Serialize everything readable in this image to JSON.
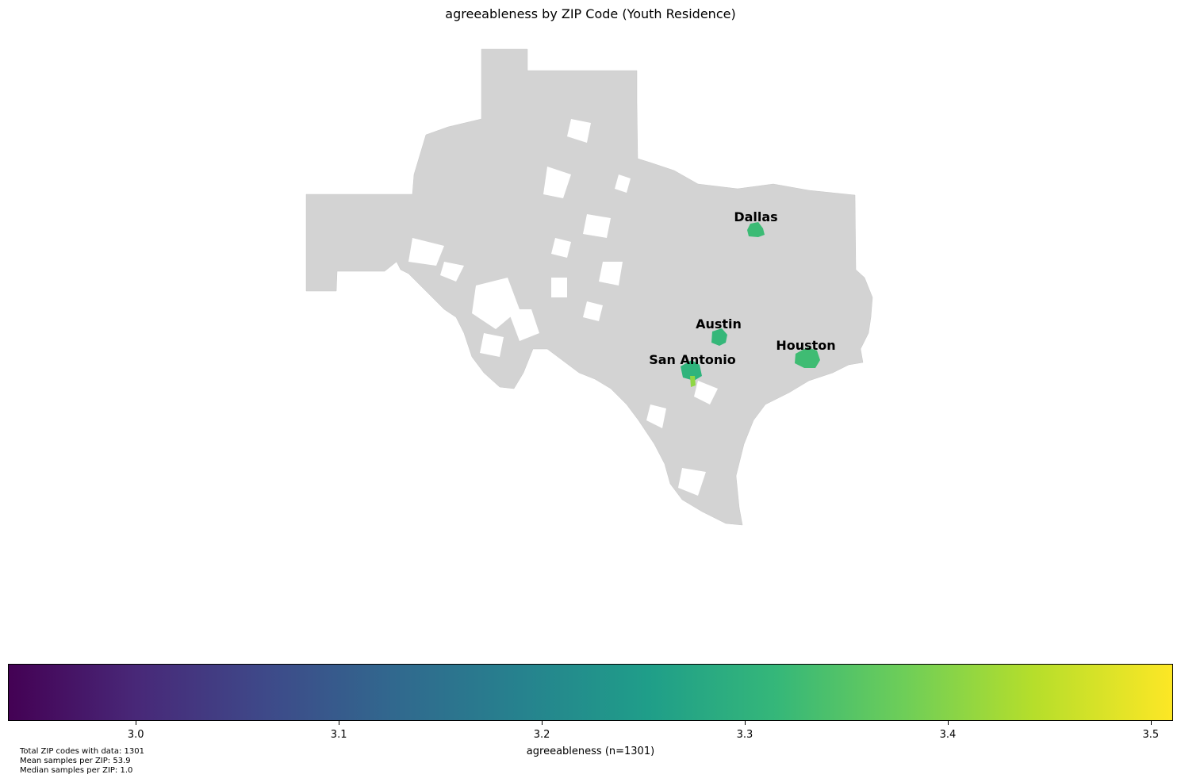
{
  "title": "agreeableness by ZIP Code (Youth Residence)",
  "map": {
    "base_color": "#d3d3d3",
    "cities": [
      {
        "name": "Dallas",
        "fill": "#3cbb75"
      },
      {
        "name": "Austin",
        "fill": "#35b779"
      },
      {
        "name": "Houston",
        "fill": "#3fbc73"
      },
      {
        "name": "San Antonio",
        "fill": "#2fb47c"
      }
    ]
  },
  "colorbar": {
    "label": "agreeableness (n=1301)",
    "range": [
      2.937,
      3.511
    ],
    "ticks": [
      "3.0",
      "3.1",
      "3.2",
      "3.3",
      "3.4",
      "3.5"
    ],
    "colormap": "viridis"
  },
  "stats": {
    "total": "Total ZIP codes with data: 1301",
    "mean": "Mean samples per ZIP: 53.9",
    "median": "Median samples per ZIP: 1.0"
  }
}
